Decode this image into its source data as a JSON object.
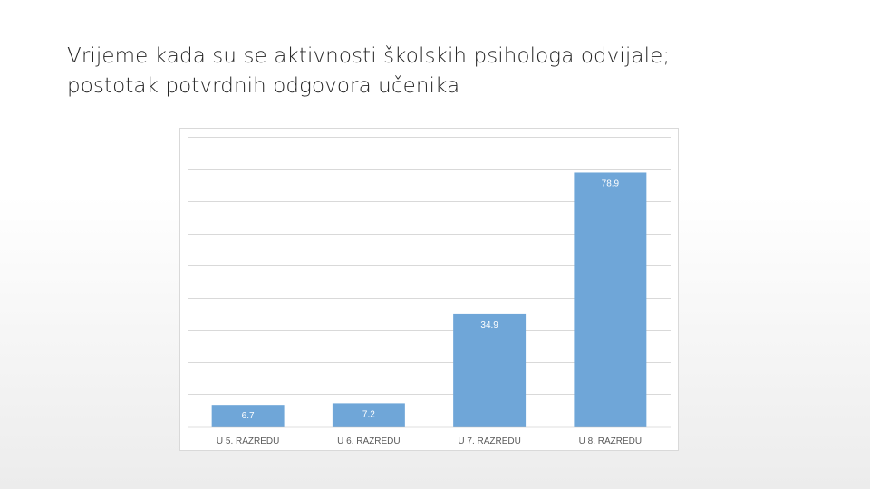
{
  "slide": {
    "title_line1": "Vrijeme kada su se aktivnosti školskih psihologa odvijale;",
    "title_line2": "postotak potvrdnih odgovora učenika"
  },
  "chart_data": {
    "type": "bar",
    "categories": [
      "U 5. RAZREDU",
      "U 6. RAZREDU",
      "U 7. RAZREDU",
      "U 8. RAZREDU"
    ],
    "series": [
      {
        "values": [
          6.7,
          7.2,
          34.9,
          78.9
        ],
        "color": "#6fa6d8"
      }
    ],
    "data_labels": [
      "6.7",
      "7.2",
      "34.9",
      "78.9"
    ],
    "ylim": [
      0,
      90
    ],
    "grid": true,
    "gridline_step": 10,
    "legend": "none",
    "colors": {
      "bar": "#6fa6d8",
      "grid": "#d9d9d9",
      "axis": "#bfbfbf",
      "tick_text": "#595959",
      "label_text": "#ffffff"
    }
  }
}
